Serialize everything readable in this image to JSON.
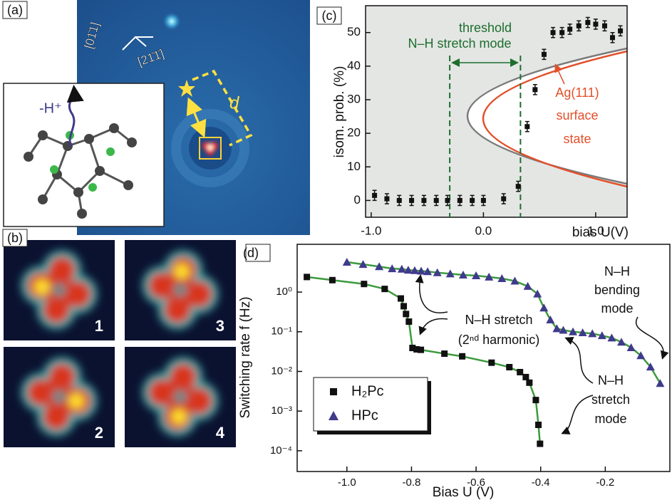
{
  "panels": {
    "a": {
      "label": "(a)",
      "directions": [
        "[01̄1]",
        "[21̄1̄]"
      ],
      "distance": "d",
      "deprotonation": "-H⁺"
    },
    "b": {
      "label": "(b)",
      "frames": [
        "1",
        "3",
        "2",
        "4"
      ]
    }
  },
  "chart_data": [
    {
      "type": "scatter",
      "panel_label": "(c)",
      "xlabel": "bias U(V)",
      "ylabel": "isom. prob. (%)",
      "x": [
        -0.97,
        -0.86,
        -0.75,
        -0.64,
        -0.53,
        -0.42,
        -0.32,
        -0.21,
        -0.1,
        0.0,
        0.18,
        0.31,
        0.39,
        0.46,
        0.54,
        0.62,
        0.7,
        0.77,
        0.85,
        0.93,
        1.0,
        1.08,
        1.15,
        1.22
      ],
      "values": [
        1.5,
        0.5,
        0,
        0,
        0,
        0,
        0,
        0,
        0,
        0,
        0.5,
        4.2,
        22,
        33,
        43.5,
        50,
        50,
        51,
        52,
        53,
        52.5,
        52,
        48.5,
        50.5
      ],
      "errors": [
        1.5,
        1.5,
        1.5,
        1.5,
        1.5,
        1.5,
        1.5,
        1.5,
        1.5,
        1.5,
        1.5,
        1.5,
        1.5,
        1.5,
        1.5,
        1.5,
        1.5,
        1.5,
        1.5,
        1.5,
        1.5,
        1.5,
        1.5,
        1.5
      ],
      "color": "#111111",
      "threshold_lines": [
        -0.3,
        0.33
      ],
      "threshold_color": "#1e6e2e",
      "annotations": [
        "threshold",
        "N–H stretch mode",
        "Ag(111)",
        "surface",
        "state"
      ],
      "xlim": [
        -1.05,
        1.28
      ],
      "ylim": [
        -5,
        58
      ],
      "xticks": [
        {
          "value": -1.0,
          "label": "-1.0"
        },
        {
          "value": 0.0,
          "label": "0.0"
        },
        {
          "value": 1.0,
          "label": "1.0"
        }
      ],
      "yticks": [
        0,
        10,
        20,
        30,
        40,
        50
      ]
    },
    {
      "type": "scatter",
      "panel_label": "(d)",
      "xlabel": "Bias U (V)",
      "ylabel": "Switching rate f (Hz)",
      "log_y": true,
      "fit_color": "#3c9a3c",
      "legend": "lower left",
      "series": [
        {
          "name": "H₂Pc",
          "marker": "square",
          "color": "#111111",
          "x": [
            -1.124,
            -1.045,
            -0.947,
            -0.883,
            -0.833,
            -0.824,
            -0.817,
            -0.808,
            -0.797,
            -0.784,
            -0.771,
            -0.698,
            -0.643,
            -0.552,
            -0.497,
            -0.464,
            -0.446,
            -0.435,
            -0.415,
            -0.407,
            -0.402
          ],
          "values": [
            2.4,
            2.0,
            1.6,
            1.2,
            0.69,
            0.44,
            0.28,
            0.18,
            0.039,
            0.036,
            0.035,
            0.028,
            0.024,
            0.0166,
            0.0128,
            0.0096,
            0.0072,
            0.0052,
            0.0019,
            0.00045,
            0.00015
          ]
        },
        {
          "name": "HPc",
          "marker": "triangle",
          "color": "#3f3a8c",
          "x": [
            -1.0,
            -0.95,
            -0.9,
            -0.86,
            -0.83,
            -0.81,
            -0.79,
            -0.77,
            -0.75,
            -0.72,
            -0.68,
            -0.64,
            -0.6,
            -0.56,
            -0.52,
            -0.48,
            -0.44,
            -0.41,
            -0.39,
            -0.37,
            -0.35,
            -0.33,
            -0.3,
            -0.27,
            -0.24,
            -0.21,
            -0.18,
            -0.15,
            -0.12,
            -0.09,
            -0.06,
            -0.03
          ],
          "values": [
            5.7,
            5.0,
            4.4,
            3.9,
            3.8,
            3.6,
            3.5,
            3.4,
            3.3,
            3.1,
            2.9,
            2.7,
            2.6,
            2.4,
            2.2,
            1.9,
            1.4,
            0.9,
            0.4,
            0.2,
            0.12,
            0.11,
            0.1,
            0.095,
            0.09,
            0.08,
            0.07,
            0.055,
            0.04,
            0.025,
            0.013,
            0.005
          ]
        }
      ],
      "annotations": [
        "N–H stretch",
        "(2ⁿᵈ harmonic)",
        "N–H",
        "bending",
        "mode",
        "N–H",
        "stretch",
        "mode"
      ],
      "xlim": [
        -1.154,
        0.0
      ],
      "ylim": [
        3e-05,
        16
      ],
      "xticks": [
        {
          "value": -1.0,
          "label": "-1.0"
        },
        {
          "value": -0.8,
          "label": "-0.8"
        },
        {
          "value": -0.6,
          "label": "-0.6"
        },
        {
          "value": -0.4,
          "label": "-0.4"
        },
        {
          "value": -0.2,
          "label": "-0.2"
        }
      ],
      "yticks": [
        {
          "value": 0.0001,
          "label": "10⁻⁴"
        },
        {
          "value": 0.001,
          "label": "10⁻³"
        },
        {
          "value": 0.01,
          "label": "10⁻²"
        },
        {
          "value": 0.1,
          "label": "10⁻¹"
        },
        {
          "value": 1,
          "label": "10⁰"
        }
      ]
    }
  ]
}
